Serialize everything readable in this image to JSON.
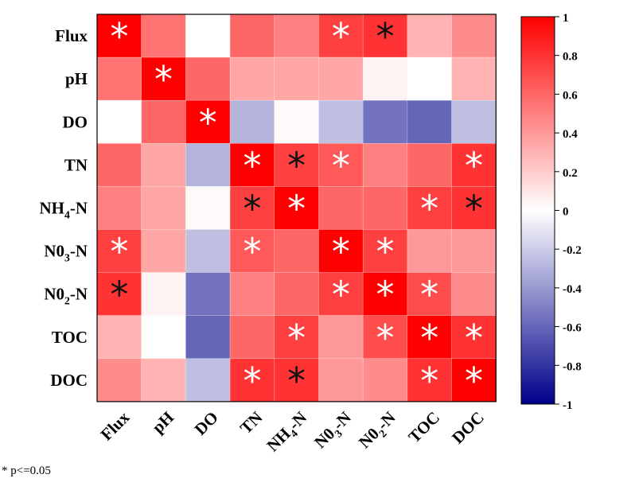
{
  "chart_data": {
    "type": "heatmap",
    "rows": [
      {
        "label": "Flux",
        "sub": ""
      },
      {
        "label": "pH",
        "sub": ""
      },
      {
        "label": "DO",
        "sub": ""
      },
      {
        "label": "TN",
        "sub": ""
      },
      {
        "label": "NH-N",
        "pre": "NH",
        "sub": "4",
        "post": "-N"
      },
      {
        "label": "N0-N",
        "pre": "N0",
        "sub": "3",
        "post": "-N"
      },
      {
        "label": "N0-N",
        "pre": "N0",
        "sub": "2",
        "post": "-N"
      },
      {
        "label": "TOC",
        "sub": ""
      },
      {
        "label": "DOC",
        "sub": ""
      }
    ],
    "columns": [
      {
        "label": "Flux"
      },
      {
        "label": "pH"
      },
      {
        "label": "DO"
      },
      {
        "label": "TN"
      },
      {
        "label": "NH-N",
        "pre": "NH",
        "sub": "4",
        "post": "-N"
      },
      {
        "label": "N0-N",
        "pre": "N0",
        "sub": "3",
        "post": "-N"
      },
      {
        "label": "N0-N",
        "pre": "N0",
        "sub": "2",
        "post": "-N"
      },
      {
        "label": "TOC"
      },
      {
        "label": "DOC"
      }
    ],
    "values": [
      [
        1.0,
        0.55,
        0.0,
        0.6,
        0.5,
        0.75,
        0.8,
        0.3,
        0.45
      ],
      [
        0.55,
        1.0,
        0.6,
        0.35,
        0.35,
        0.35,
        0.05,
        0.0,
        0.3
      ],
      [
        0.0,
        0.6,
        1.0,
        -0.3,
        0.02,
        -0.25,
        -0.55,
        -0.6,
        -0.25
      ],
      [
        0.6,
        0.35,
        -0.3,
        1.0,
        0.75,
        0.65,
        0.5,
        0.6,
        0.8
      ],
      [
        0.5,
        0.35,
        0.02,
        0.75,
        1.0,
        0.6,
        0.6,
        0.75,
        0.8
      ],
      [
        0.75,
        0.35,
        -0.25,
        0.65,
        0.6,
        1.0,
        0.75,
        0.4,
        0.4
      ],
      [
        0.8,
        0.05,
        -0.55,
        0.5,
        0.6,
        0.75,
        1.0,
        0.7,
        0.45
      ],
      [
        0.3,
        0.0,
        -0.6,
        0.6,
        0.75,
        0.4,
        0.7,
        1.0,
        0.8
      ],
      [
        0.45,
        0.3,
        -0.25,
        0.8,
        0.8,
        0.4,
        0.45,
        0.8,
        1.0
      ]
    ],
    "significance": [
      [
        "white",
        "",
        "",
        "",
        "",
        "white",
        "black",
        "",
        ""
      ],
      [
        "",
        "white",
        "",
        "",
        "",
        "",
        "",
        "",
        ""
      ],
      [
        "",
        "",
        "white",
        "",
        "",
        "",
        "",
        "",
        ""
      ],
      [
        "",
        "",
        "",
        "white",
        "black",
        "white",
        "",
        "",
        "white"
      ],
      [
        "",
        "",
        "",
        "black",
        "white",
        "",
        "",
        "white",
        "black"
      ],
      [
        "white",
        "",
        "",
        "white",
        "",
        "white",
        "white",
        "",
        ""
      ],
      [
        "black",
        "",
        "",
        "",
        "",
        "white",
        "white",
        "white",
        ""
      ],
      [
        "",
        "",
        "",
        "",
        "white",
        "",
        "white",
        "white",
        "white"
      ],
      [
        "",
        "",
        "",
        "white",
        "black",
        "",
        "",
        "white",
        "white"
      ]
    ],
    "significance_marker": "*",
    "colorbar": {
      "min": -1,
      "max": 1,
      "ticks": [
        "1",
        "0.8",
        "0.6",
        "0.4",
        "0.2",
        "0",
        "-0.2",
        "-0.4",
        "-0.6",
        "-0.8",
        "-1"
      ],
      "colors": {
        "low": "#00008b",
        "mid": "#ffffff",
        "high": "#ff0000"
      }
    },
    "footnote": "* p<=0.05"
  }
}
